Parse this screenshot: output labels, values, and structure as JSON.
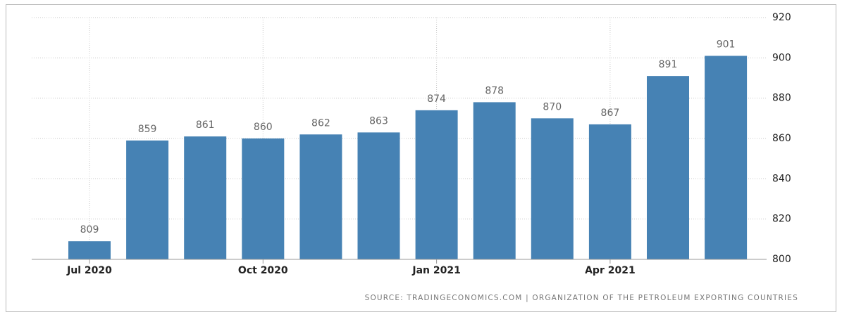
{
  "chart_data": {
    "type": "bar",
    "categories": [
      "Jul 2020",
      null,
      null,
      "Oct 2020",
      null,
      null,
      "Jan 2021",
      null,
      null,
      "Apr 2021",
      null,
      null
    ],
    "values": [
      809,
      859,
      861,
      860,
      862,
      863,
      874,
      878,
      870,
      867,
      891,
      901
    ],
    "color": "#4682b4",
    "ylim": [
      800,
      920
    ],
    "yticks": [
      800,
      820,
      840,
      860,
      880,
      900,
      920
    ],
    "grid": true,
    "y_axis_side": "right",
    "source": "SOURCE: TRADINGECONOMICS.COM | ORGANIZATION OF THE PETROLEUM EXPORTING COUNTRIES"
  }
}
